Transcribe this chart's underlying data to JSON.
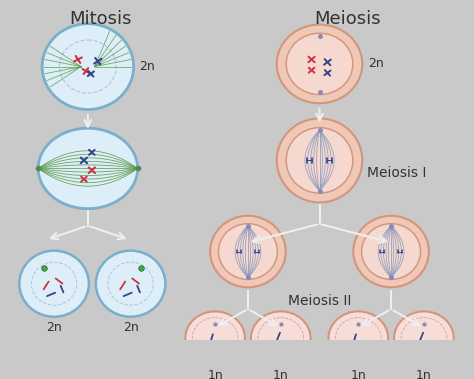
{
  "background_color": "#c9c9c9",
  "title_mitosis": "Mitosis",
  "title_meiosis": "Meiosis",
  "label_meiosis1": "Meiosis I",
  "label_meiosis2": "Meiosis II",
  "label_2n": "2n",
  "label_1n": "1n",
  "cell_blue_fill": "#deeef8",
  "cell_blue_edge": "#7aafcc",
  "cell_pink_outer_fill": "#f0c8b8",
  "cell_pink_outer_edge": "#d4957a",
  "cell_pink_inner_fill": "#f5d8d0",
  "cell_pink_inner_edge": "#d4a090",
  "cell_light_pink_fill": "#f7ddd8",
  "cell_light_pink_inner": "#f2c8c8",
  "inner_dashed_color": "#aac8d8",
  "spindle_green": "#559944",
  "spindle_pink": "#cc9999",
  "spindle_blue": "#8899bb",
  "chrom_red": "#cc3344",
  "chrom_blue": "#334488",
  "chrom_green": "#336633",
  "arrow_color": "#eeeeee",
  "text_color": "#333333",
  "title_fontsize": 13,
  "label_fontsize": 9,
  "meiosis_label_fontsize": 10
}
